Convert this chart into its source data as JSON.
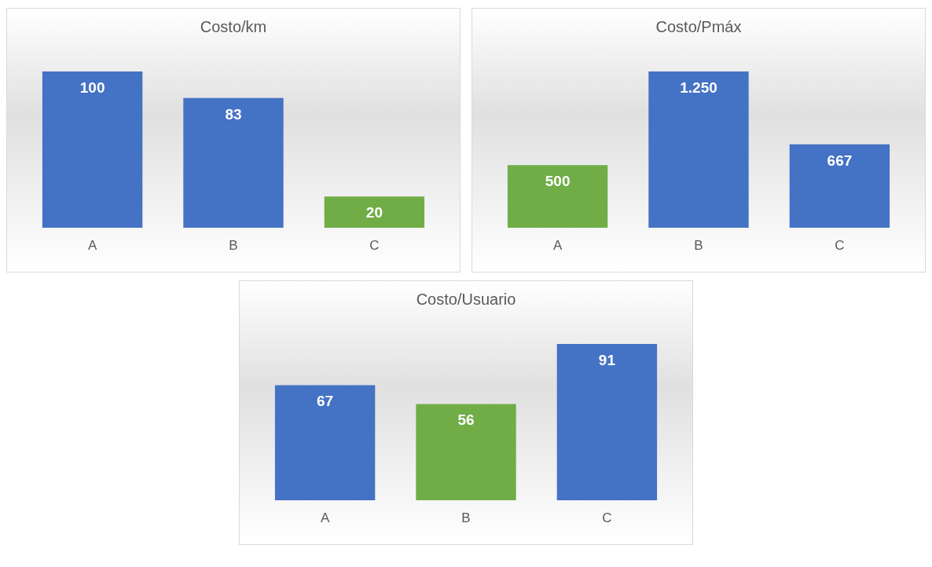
{
  "chart_data": [
    {
      "type": "bar",
      "title": "Costo/km",
      "categories": [
        "A",
        "B",
        "C"
      ],
      "values": [
        100,
        83,
        20
      ],
      "colors": [
        "#4472c4",
        "#4472c4",
        "#70ad47"
      ],
      "data_labels": true
    },
    {
      "type": "bar",
      "title": "Costo/Pmáx",
      "categories": [
        "A",
        "B",
        "C"
      ],
      "values": [
        500,
        1250,
        667
      ],
      "colors": [
        "#70ad47",
        "#4472c4",
        "#4472c4"
      ],
      "value_labels": [
        "500",
        "1.250",
        "667"
      ]
    },
    {
      "type": "bar",
      "title": "Costo/Usuario",
      "categories": [
        "A",
        "B",
        "C"
      ],
      "values": [
        67,
        56,
        91
      ],
      "colors": [
        "#4472c4",
        "#70ad47",
        "#4472c4"
      ],
      "data_labels": true
    }
  ]
}
